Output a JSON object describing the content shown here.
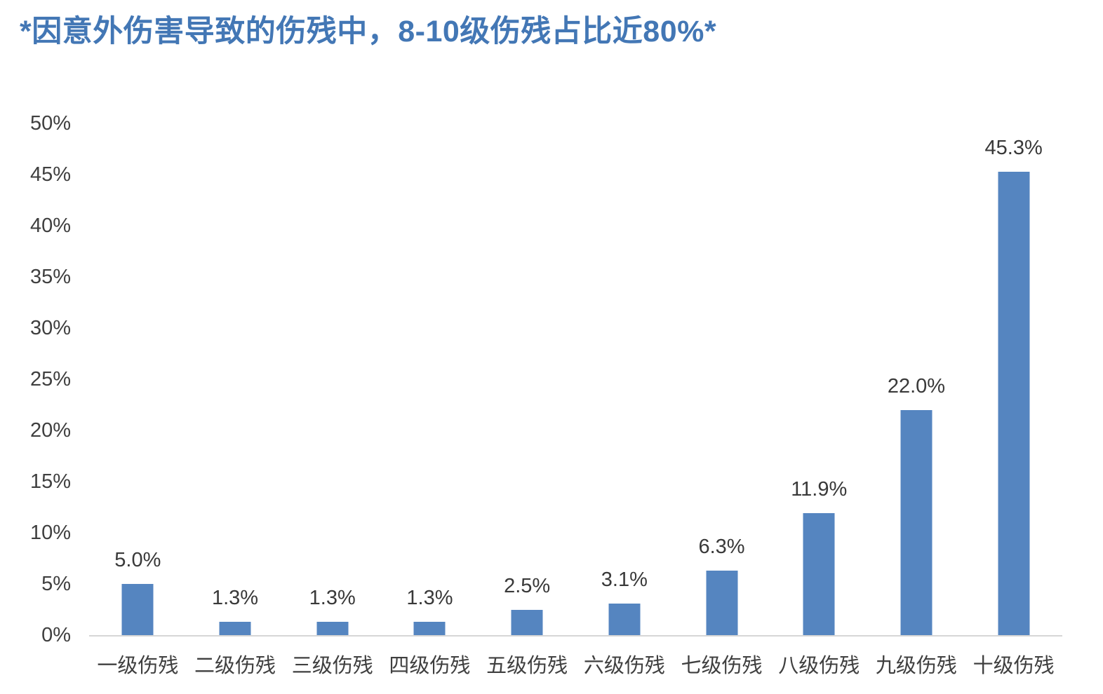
{
  "title": {
    "text": "*因意外伤害导致的伤残中，8-10级伤残占比近80%*",
    "color": "#4377B5"
  },
  "chart_data": {
    "type": "bar",
    "title": "*因意外伤害导致的伤残中，8-10级伤残占比近80%*",
    "categories": [
      "一级伤残",
      "二级伤残",
      "三级伤残",
      "四级伤残",
      "五级伤残",
      "六级伤残",
      "七级伤残",
      "八级伤残",
      "九级伤残",
      "十级伤残"
    ],
    "values": [
      5.0,
      1.3,
      1.3,
      1.3,
      2.5,
      3.1,
      6.3,
      11.9,
      22.0,
      45.3
    ],
    "value_labels": [
      "5.0%",
      "1.3%",
      "1.3%",
      "1.3%",
      "2.5%",
      "3.1%",
      "6.3%",
      "11.9%",
      "22.0%",
      "45.3%"
    ],
    "xlabel": "",
    "ylabel": "",
    "ylim": [
      0,
      50
    ],
    "yticks": [
      "0%",
      "5%",
      "10%",
      "15%",
      "20%",
      "25%",
      "30%",
      "35%",
      "40%",
      "45%",
      "50%"
    ],
    "ytick_values": [
      0,
      5,
      10,
      15,
      20,
      25,
      30,
      35,
      40,
      45,
      50
    ],
    "grid": false,
    "legend": false,
    "bar_color": "#5585C0",
    "axis_label_color": "#3F3F3F",
    "data_label_color": "#393939",
    "baseline_color": "#D6D6D6"
  }
}
